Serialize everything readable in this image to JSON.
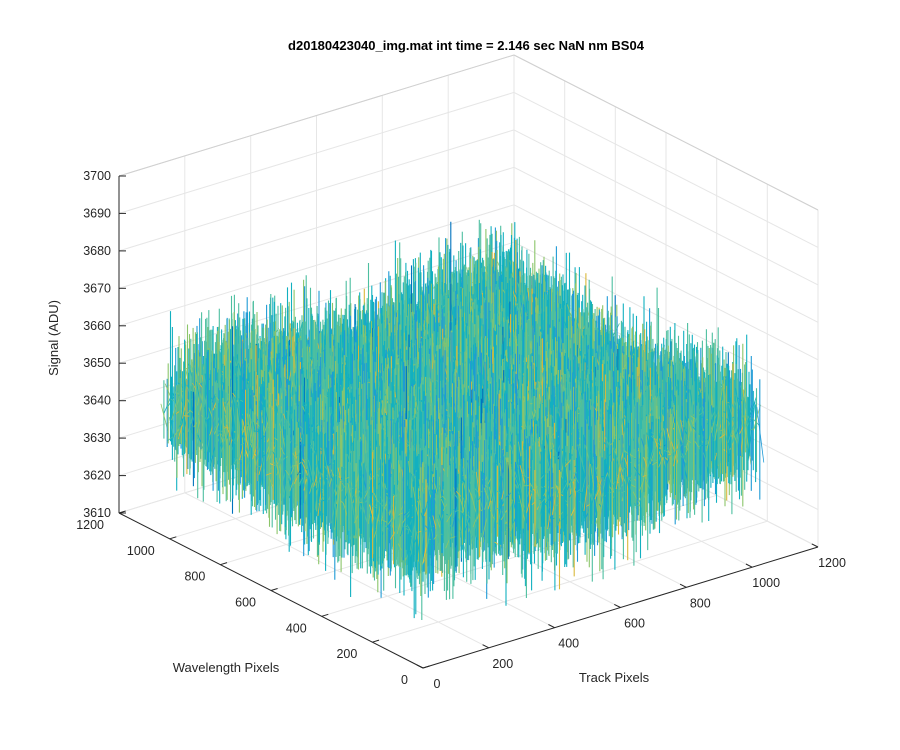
{
  "chart_data": {
    "type": "surface",
    "title": "d20180423040_img.mat int time = 2.146 sec  NaN nm BS04",
    "xlabel": "Track Pixels",
    "ylabel": "Wavelength Pixels",
    "zlabel": "Signal (ADU)",
    "xlim": [
      0,
      1200
    ],
    "ylim": [
      0,
      1200
    ],
    "zlim": [
      3610,
      3700
    ],
    "xticks": [
      "0",
      "200",
      "400",
      "600",
      "800",
      "1000",
      "1200"
    ],
    "yticks": [
      "0",
      "200",
      "400",
      "600",
      "800",
      "1000",
      "1200"
    ],
    "zticks": [
      "3610",
      "3620",
      "3630",
      "3640",
      "3650",
      "3660",
      "3670",
      "3680",
      "3690",
      "3700"
    ],
    "data_extent": {
      "x": [
        1,
        1024
      ],
      "y": [
        1,
        1024
      ]
    },
    "signal_mean": 3645,
    "signal_range": [
      3615,
      3695
    ],
    "grid": true,
    "colormap": [
      "#0072bd",
      "#1f9ad6",
      "#12b0c0",
      "#4dbfa0",
      "#8cc56a",
      "#d9b83a",
      "#f4c430"
    ]
  }
}
